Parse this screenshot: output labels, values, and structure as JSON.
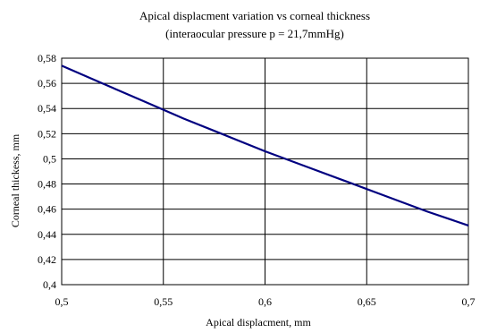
{
  "chart_data": {
    "type": "line",
    "title": "Apical displacment variation vs corneal thickness",
    "subtitle": "(interaocular pressure p = 21,7mmHg)",
    "xlabel": "Apical displacment, mm",
    "ylabel": "Corneal thickess, mm",
    "xlim": [
      0.5,
      0.7
    ],
    "ylim": [
      0.4,
      0.58
    ],
    "x_ticks": [
      "0,5",
      "0,55",
      "0,6",
      "0,65",
      "0,7"
    ],
    "y_ticks": [
      "0,4",
      "0,42",
      "0,44",
      "0,46",
      "0,48",
      "0,5",
      "0,52",
      "0,54",
      "0,56",
      "0,58"
    ],
    "grid": true,
    "line_color": "#000080",
    "series": [
      {
        "x": [
          0.5,
          0.52,
          0.54,
          0.55,
          0.56,
          0.58,
          0.6,
          0.62,
          0.64,
          0.66,
          0.68,
          0.7
        ],
        "y": [
          0.574,
          0.56,
          0.546,
          0.539,
          0.532,
          0.519,
          0.506,
          0.494,
          0.482,
          0.47,
          0.458,
          0.447
        ]
      }
    ]
  }
}
